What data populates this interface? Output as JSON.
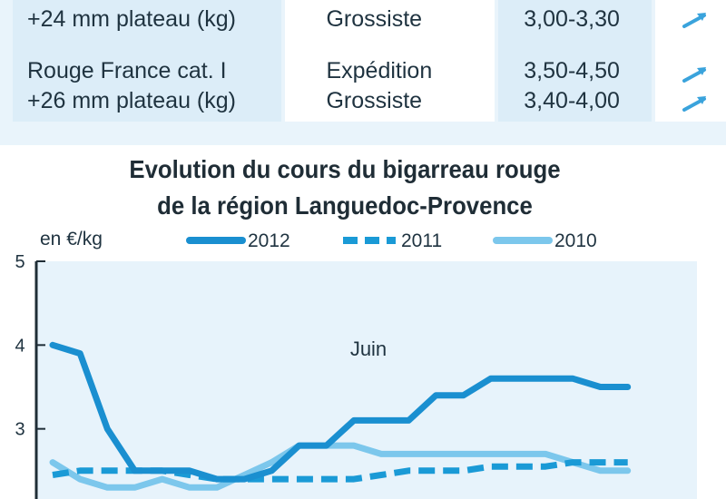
{
  "table": {
    "rows": [
      {
        "product_lines": [
          "",
          "+24 mm plateau (kg)"
        ],
        "type_lines": [
          "",
          "Grossiste"
        ],
        "price_lines": [
          "",
          "3,00-3,30"
        ],
        "trends": [
          "",
          "up"
        ]
      },
      {
        "product_lines": [
          "Rouge France cat. I",
          "+26 mm plateau (kg)"
        ],
        "type_lines": [
          "Expédition",
          "Grossiste"
        ],
        "price_lines": [
          "3,50-4,50",
          "3,40-4,00"
        ],
        "trends": [
          "up",
          "up"
        ]
      }
    ],
    "colors": {
      "band": "#e9f4fb",
      "cell_blue": "#dcedf8",
      "arrow": "#3aa3dc"
    }
  },
  "chart": {
    "title_line1": "Evolution du cours du  bigarreau rouge",
    "title_line2": "de la région Languedoc-Provence",
    "unit": "en €/kg",
    "annotation": "Juin"
  },
  "chart_data": {
    "type": "line",
    "title": "Evolution du cours du  bigarreau rouge de la région Languedoc-Provence",
    "ylabel": "en €/kg",
    "ylim": [
      2,
      5
    ],
    "yticks": [
      3,
      4,
      5
    ],
    "ytick_labels": [
      "3",
      "4",
      "5"
    ],
    "grid": false,
    "legend": "top",
    "annotation": "Juin",
    "x": [
      1,
      2,
      3,
      4,
      5,
      6,
      7,
      8,
      9,
      10,
      11,
      12,
      13,
      14,
      15,
      16,
      17,
      18,
      19,
      20,
      21,
      22,
      23,
      24
    ],
    "series": [
      {
        "name": "2012",
        "color": "#1a8fd0",
        "style": "solid",
        "values": [
          4.0,
          3.9,
          3.0,
          2.5,
          2.5,
          2.5,
          2.4,
          2.4,
          2.5,
          2.8,
          2.8,
          3.1,
          3.1,
          3.1,
          3.4,
          3.4,
          3.6,
          3.6,
          3.6,
          3.6,
          3.5,
          3.5,
          null,
          null
        ]
      },
      {
        "name": "2011",
        "color": "#1a9ad6",
        "style": "dashed",
        "values": [
          2.45,
          2.5,
          2.5,
          2.5,
          2.5,
          2.45,
          2.4,
          2.4,
          2.4,
          2.4,
          2.4,
          2.4,
          2.45,
          2.5,
          2.5,
          2.5,
          2.55,
          2.55,
          2.55,
          2.6,
          2.6,
          2.6,
          null,
          null
        ]
      },
      {
        "name": "2010",
        "color": "#7cc7ec",
        "style": "solid",
        "values": [
          2.6,
          2.4,
          2.3,
          2.3,
          2.4,
          2.3,
          2.3,
          2.45,
          2.6,
          2.8,
          2.8,
          2.8,
          2.7,
          2.7,
          2.7,
          2.7,
          2.7,
          2.7,
          2.7,
          2.6,
          2.5,
          2.5,
          null,
          null
        ]
      }
    ]
  }
}
